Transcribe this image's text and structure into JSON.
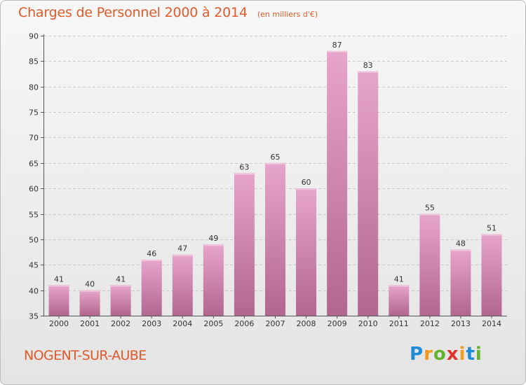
{
  "chart_data": {
    "type": "bar",
    "title": "Charges de Personnel 2000 à 2014",
    "subtitle": "(en milliers d'€)",
    "categories": [
      "2000",
      "2001",
      "2002",
      "2003",
      "2004",
      "2005",
      "2006",
      "2007",
      "2008",
      "2009",
      "2010",
      "2011",
      "2012",
      "2013",
      "2014"
    ],
    "values": [
      41,
      40,
      41,
      46,
      47,
      49,
      63,
      65,
      60,
      87,
      83,
      41,
      55,
      48,
      51
    ],
    "ylim": [
      35,
      90
    ],
    "yticks": [
      "35",
      "40",
      "45",
      "50",
      "55",
      "60",
      "65",
      "70",
      "75",
      "80",
      "85",
      "90"
    ],
    "grid": true,
    "xlabel": "",
    "ylabel": "",
    "colors": {
      "bar_top": "#e7a5cb",
      "bar_bottom": "#b1668f",
      "text": "#e05a2a"
    }
  },
  "commune": "NOGENT-SUR-AUBE",
  "logo": {
    "letters": [
      "P",
      "r",
      "o",
      "x",
      "i",
      "t",
      "i"
    ],
    "colors": [
      "#1f8ad6",
      "#f39a1d",
      "#64b32f",
      "#e2332b",
      "#f39a1d",
      "#1f8ad6",
      "#64b32f"
    ]
  }
}
